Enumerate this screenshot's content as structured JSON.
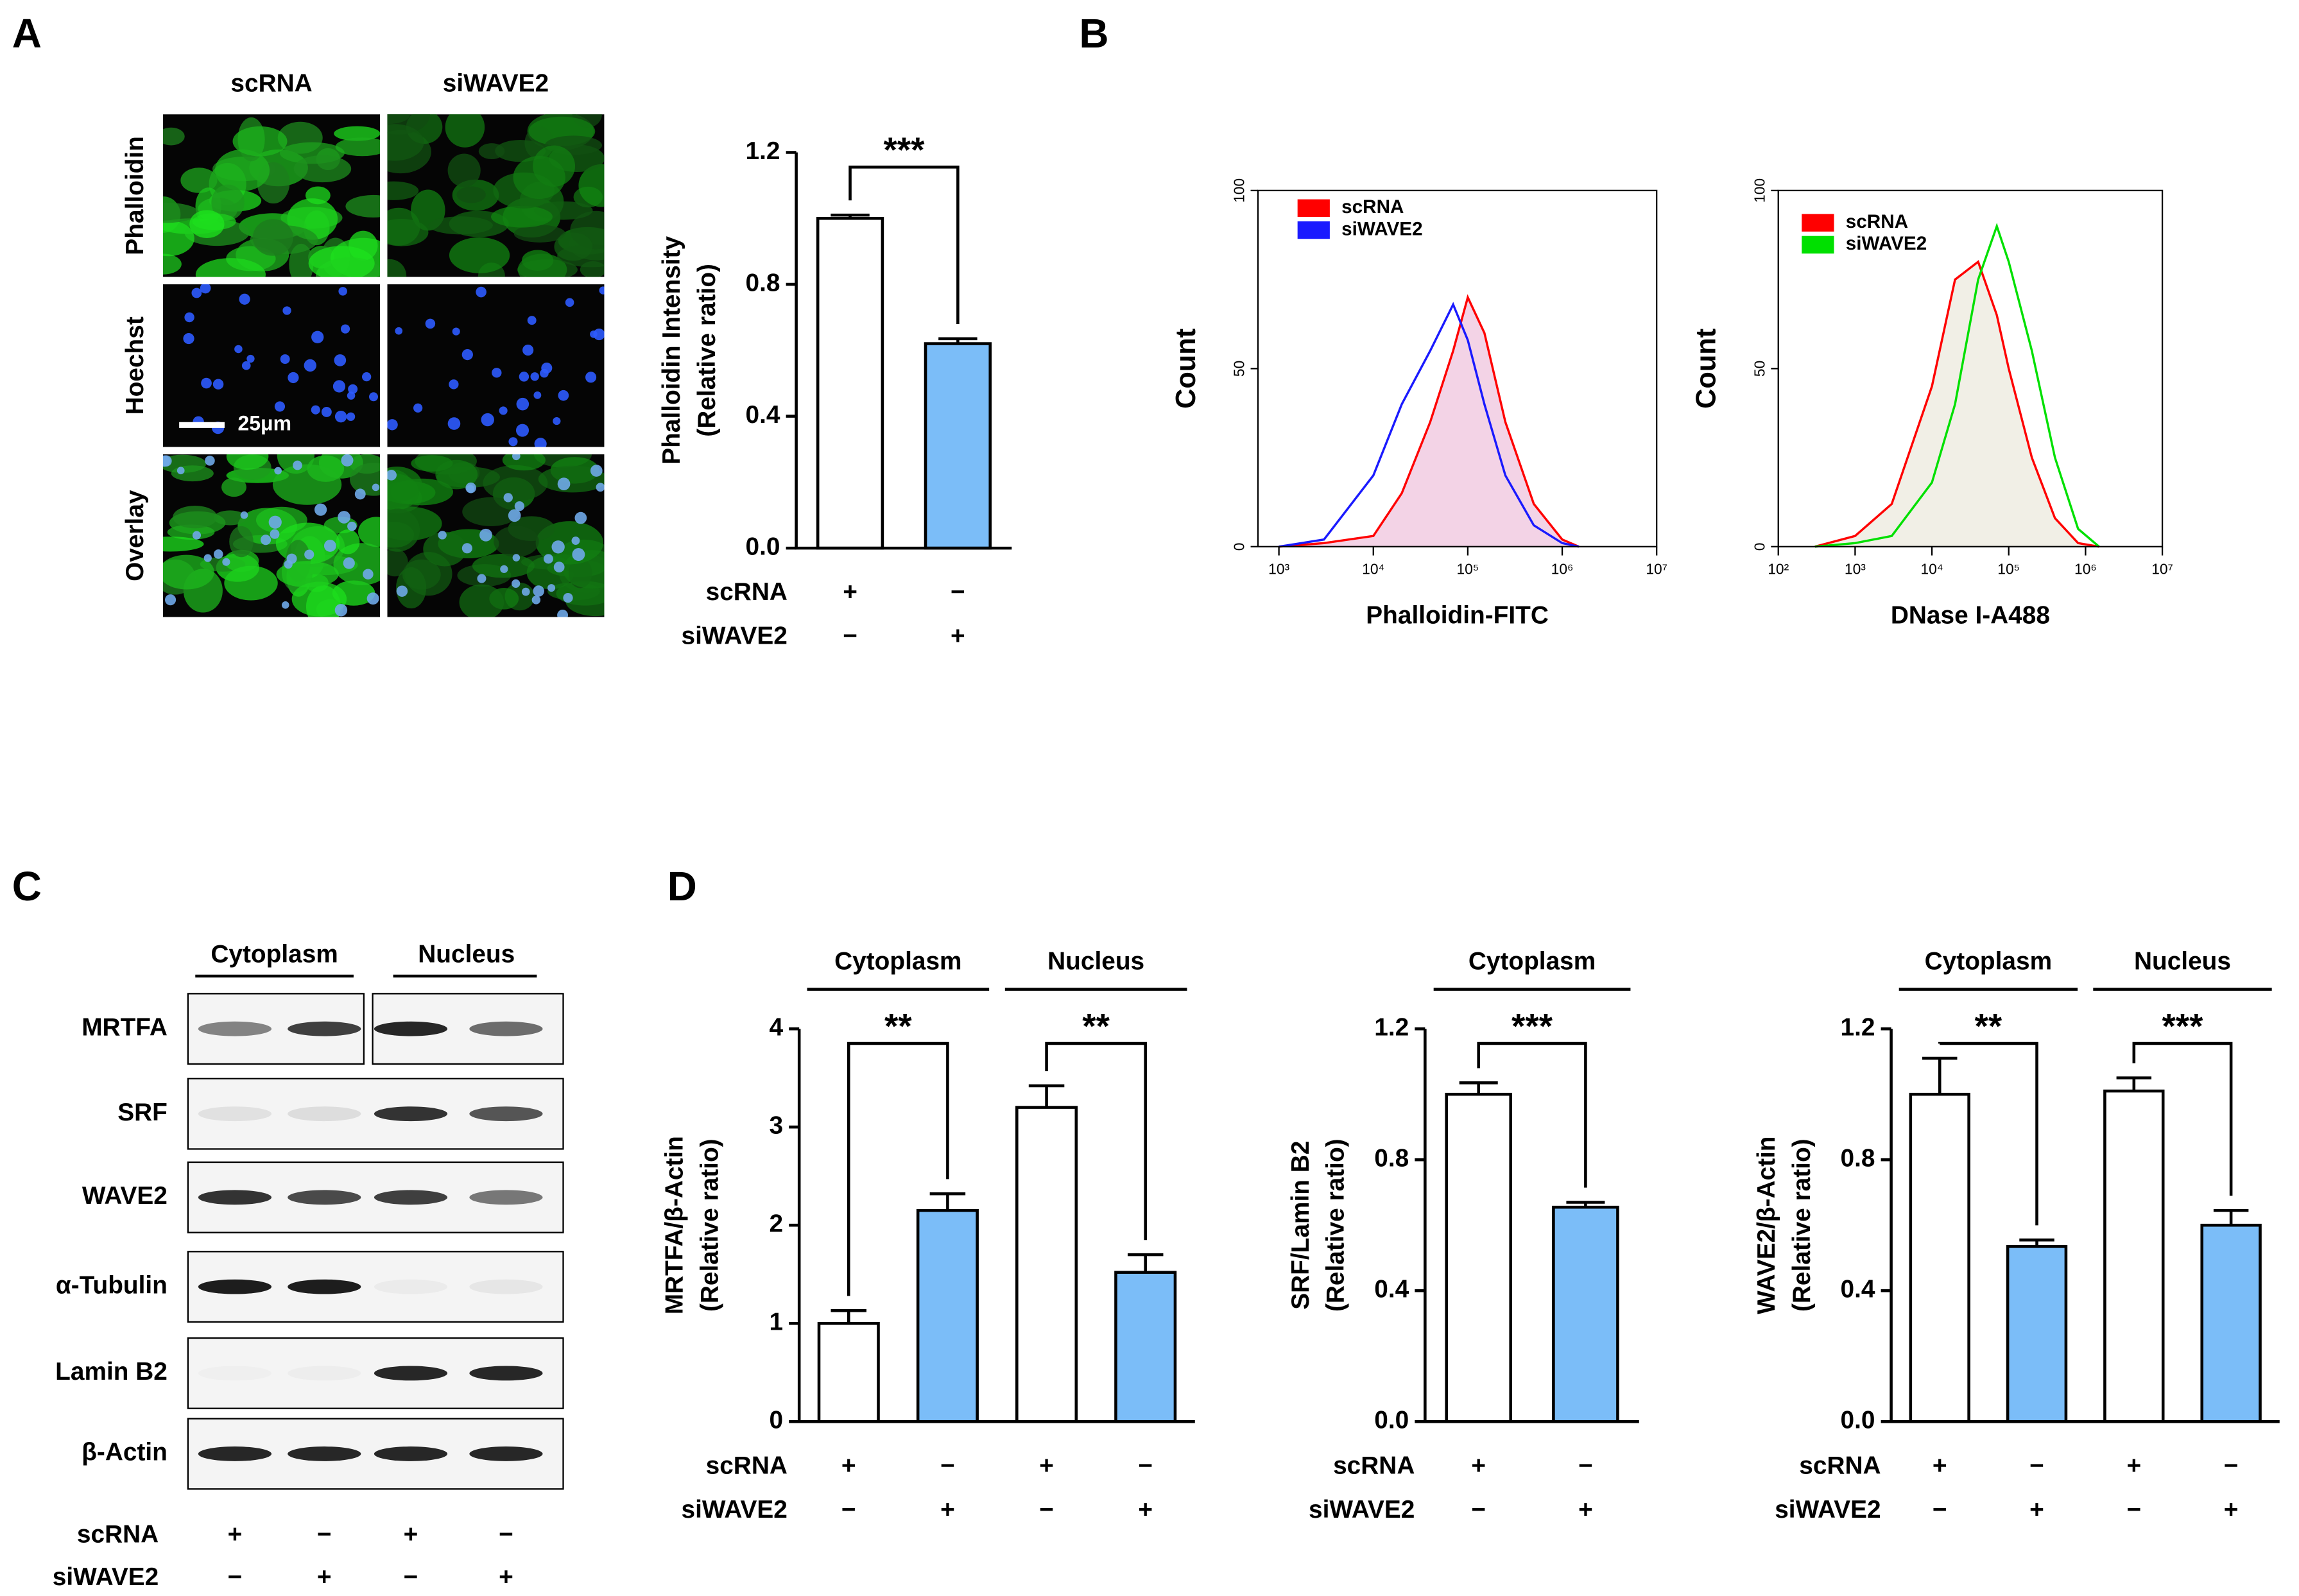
{
  "panel_labels": [
    "A",
    "B",
    "C",
    "D"
  ],
  "microscopy": {
    "columns": [
      "scRNA",
      "siWAVE2"
    ],
    "rows": [
      "Phalloidin",
      "Hoechst",
      "Overlay"
    ],
    "scale_bar": "25μm"
  },
  "western_blot": {
    "fractions": [
      "Cytoplasm",
      "Nucleus"
    ],
    "proteins": [
      "MRTFA",
      "SRF",
      "WAVE2",
      "α-Tubulin",
      "Lamin B2",
      "β-Actin"
    ],
    "conditions": [
      {
        "name": "scRNA",
        "signs": [
          "+",
          "−",
          "+",
          "−"
        ]
      },
      {
        "name": "siWAVE2",
        "signs": [
          "−",
          "+",
          "−",
          "+"
        ]
      }
    ]
  },
  "chart_data": [
    {
      "type": "bar",
      "ylabel": [
        "Phalloidin Intensity",
        "(Relative ratio)"
      ],
      "values": [
        1.0,
        0.62
      ],
      "errors": [
        0.01,
        0.015
      ],
      "bar_colors": [
        "#ffffff",
        "#7bbdf8"
      ],
      "ylim": [
        0,
        1.2
      ],
      "yticks": [
        {
          "value": 0,
          "label": "0.0"
        },
        {
          "value": 0.4,
          "label": "0.4"
        },
        {
          "value": 0.8,
          "label": "0.8"
        },
        {
          "value": 1.2,
          "label": "1.2"
        }
      ],
      "conditions": [
        {
          "name": "scRNA",
          "signs": [
            "+",
            "−"
          ]
        },
        {
          "name": "siWAVE2",
          "signs": [
            "−",
            "+"
          ]
        }
      ],
      "significance": [
        {
          "label": "***",
          "pair": [
            0,
            1
          ]
        }
      ]
    },
    {
      "type": "line",
      "xscale": "log",
      "xlabel": "Phalloidin-FITC",
      "ylabel": "Count",
      "x": [
        1000,
        3000,
        10000,
        20000,
        40000,
        70000,
        100000,
        150000,
        250000,
        500000,
        1000000,
        1500000
      ],
      "series": [
        {
          "name": "scRNA",
          "color": "#ff0000",
          "fill": "#f3d3e6",
          "values": [
            0,
            1,
            3,
            15,
            35,
            55,
            70,
            60,
            35,
            12,
            2,
            0
          ]
        },
        {
          "name": "siWAVE2",
          "color": "#1a1aff",
          "values": [
            0,
            2,
            20,
            40,
            55,
            68,
            58,
            40,
            20,
            6,
            1,
            0
          ]
        }
      ],
      "xlim": [
        600,
        10000000
      ],
      "xticks": [
        {
          "value": 1000,
          "label": "10³"
        },
        {
          "value": 10000,
          "label": "10⁴"
        },
        {
          "value": 100000,
          "label": "10⁵"
        },
        {
          "value": 1000000,
          "label": "10⁶"
        },
        {
          "value": 10000000,
          "label": "10⁷"
        }
      ],
      "ylim": [
        0,
        100
      ],
      "yticks": [
        0,
        50,
        100
      ]
    },
    {
      "type": "line",
      "xscale": "log",
      "xlabel": "DNase I-A488",
      "ylabel": "Count",
      "x": [
        300,
        1000,
        3000,
        10000,
        20000,
        40000,
        70000,
        100000,
        200000,
        400000,
        800000,
        1500000
      ],
      "series": [
        {
          "name": "scRNA",
          "color": "#ff0000",
          "fill": "#f1efe6",
          "values": [
            0,
            3,
            12,
            45,
            75,
            80,
            65,
            50,
            25,
            8,
            1,
            0
          ]
        },
        {
          "name": "siWAVE2",
          "color": "#00e000",
          "values": [
            0,
            1,
            3,
            18,
            40,
            75,
            90,
            80,
            55,
            25,
            5,
            0
          ]
        }
      ],
      "xlim": [
        100,
        10000000
      ],
      "xticks": [
        {
          "value": 100,
          "label": "10²"
        },
        {
          "value": 1000,
          "label": "10³"
        },
        {
          "value": 10000,
          "label": "10⁴"
        },
        {
          "value": 100000,
          "label": "10⁵"
        },
        {
          "value": 1000000,
          "label": "10⁶"
        },
        {
          "value": 10000000,
          "label": "10⁷"
        }
      ],
      "ylim": [
        0,
        100
      ],
      "yticks": [
        0,
        50,
        100
      ]
    },
    {
      "type": "bar",
      "ylabel": [
        "MRTFA/β-Actin",
        "(Relative ratio)"
      ],
      "values": [
        1.0,
        2.15,
        3.2,
        1.52
      ],
      "errors": [
        0.13,
        0.17,
        0.22,
        0.18
      ],
      "bar_colors": [
        "#ffffff",
        "#7bbdf8",
        "#ffffff",
        "#7bbdf8"
      ],
      "ylim": [
        0,
        4
      ],
      "yticks": [
        0,
        1,
        2,
        3,
        4
      ],
      "conditions": [
        {
          "name": "scRNA",
          "signs": [
            "+",
            "−",
            "+",
            "−"
          ]
        },
        {
          "name": "siWAVE2",
          "signs": [
            "−",
            "+",
            "−",
            "+"
          ]
        }
      ],
      "groups": [
        {
          "label": "Cytoplasm",
          "members": [
            0,
            1
          ]
        },
        {
          "label": "Nucleus",
          "members": [
            2,
            3
          ]
        }
      ],
      "significance": [
        {
          "label": "**",
          "pair": [
            0,
            1
          ]
        },
        {
          "label": "**",
          "pair": [
            2,
            3
          ]
        }
      ]
    },
    {
      "type": "bar",
      "ylabel": [
        "SRF/Lamin B2",
        "(Relative ratio)"
      ],
      "values": [
        1.0,
        0.655
      ],
      "errors": [
        0.035,
        0.015
      ],
      "bar_colors": [
        "#ffffff",
        "#7bbdf8"
      ],
      "ylim": [
        0,
        1.2
      ],
      "yticks": [
        {
          "value": 0,
          "label": "0.0"
        },
        {
          "value": 0.4,
          "label": "0.4"
        },
        {
          "value": 0.8,
          "label": "0.8"
        },
        {
          "value": 1.2,
          "label": "1.2"
        }
      ],
      "conditions": [
        {
          "name": "scRNA",
          "signs": [
            "+",
            "−"
          ]
        },
        {
          "name": "siWAVE2",
          "signs": [
            "−",
            "+"
          ]
        }
      ],
      "groups": [
        {
          "label": "Cytoplasm",
          "members": [
            0,
            1
          ]
        }
      ],
      "significance": [
        {
          "label": "***",
          "pair": [
            0,
            1
          ]
        }
      ]
    },
    {
      "type": "bar",
      "ylabel": [
        "WAVE2/β-Actin",
        "(Relative ratio)"
      ],
      "values": [
        1.0,
        0.535,
        1.01,
        0.6
      ],
      "errors": [
        0.11,
        0.02,
        0.04,
        0.045
      ],
      "bar_colors": [
        "#ffffff",
        "#7bbdf8",
        "#ffffff",
        "#7bbdf8"
      ],
      "ylim": [
        0,
        1.2
      ],
      "yticks": [
        {
          "value": 0,
          "label": "0.0"
        },
        {
          "value": 0.4,
          "label": "0.4"
        },
        {
          "value": 0.8,
          "label": "0.8"
        },
        {
          "value": 1.2,
          "label": "1.2"
        }
      ],
      "conditions": [
        {
          "name": "scRNA",
          "signs": [
            "+",
            "−",
            "+",
            "−"
          ]
        },
        {
          "name": "siWAVE2",
          "signs": [
            "−",
            "+",
            "−",
            "+"
          ]
        }
      ],
      "groups": [
        {
          "label": "Cytoplasm",
          "members": [
            0,
            1
          ]
        },
        {
          "label": "Nucleus",
          "members": [
            2,
            3
          ]
        }
      ],
      "significance": [
        {
          "label": "**",
          "pair": [
            0,
            1
          ]
        },
        {
          "label": "***",
          "pair": [
            2,
            3
          ]
        }
      ]
    }
  ]
}
